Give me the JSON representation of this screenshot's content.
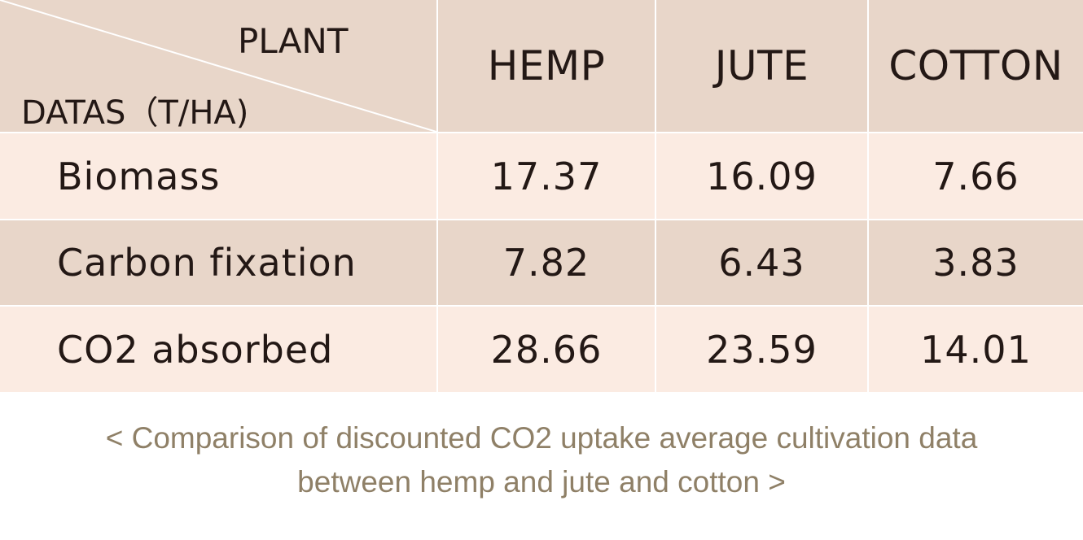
{
  "chart_data": {
    "type": "table",
    "corner_header": {
      "top_label": "PLANT",
      "bottom_label": "DATAS（T/HA)"
    },
    "columns": [
      "HEMP",
      "JUTE",
      "COTTON"
    ],
    "rows": [
      {
        "label": "Biomass",
        "values": [
          "17.37",
          "16.09",
          "7.66"
        ]
      },
      {
        "label": "Carbon fixation",
        "values": [
          "7.82",
          "6.43",
          "3.83"
        ]
      },
      {
        "label": "CO2 absorbed",
        "values": [
          "28.66",
          "23.59",
          "14.01"
        ]
      }
    ],
    "caption": [
      "< Comparison of discounted CO2 uptake average cultivation data",
      "between hemp and jute and cotton >"
    ]
  },
  "colors": {
    "header_background": "#e8d6c9",
    "light_row_background": "#fbebe2",
    "dark_row_background": "#e8d6c9",
    "grid_lines": "#ffffff",
    "text": "#231815",
    "caption_text": "#8f8067"
  }
}
